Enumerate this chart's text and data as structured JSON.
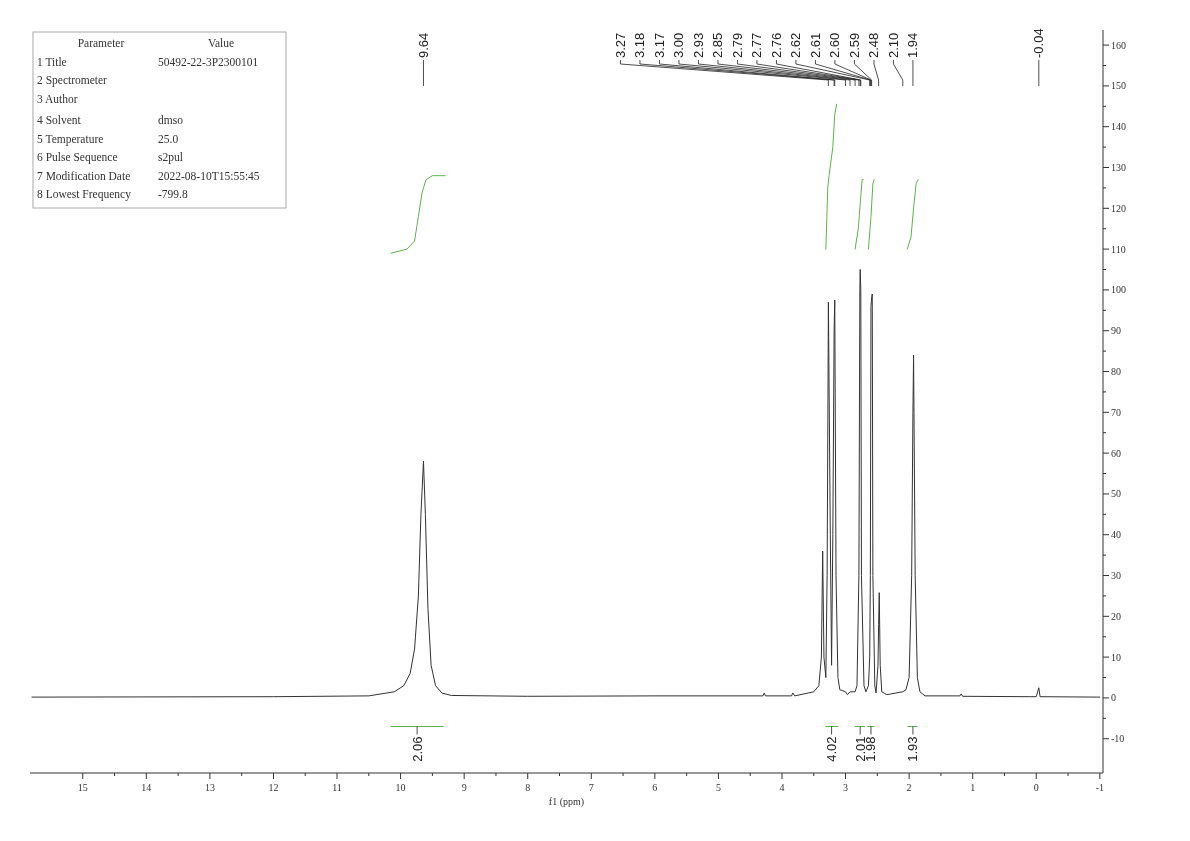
{
  "chart_data": {
    "type": "line",
    "xlabel": "f1 (ppm)",
    "xlim": [
      15.83,
      -1.05
    ],
    "ylim": [
      -18.4,
      163.7
    ],
    "xticks": [
      15,
      {
        "value": 14.5,
        "label": null
      },
      14,
      {
        "value": 13.5,
        "label": null
      },
      13,
      {
        "value": 12.5,
        "label": null
      },
      12,
      {
        "value": 11.5,
        "label": null
      },
      11,
      {
        "value": 10.5,
        "label": null
      },
      10,
      {
        "value": 9.5,
        "label": null
      },
      9,
      {
        "value": 8.5,
        "label": null
      },
      8,
      {
        "value": 7.5,
        "label": null
      },
      7,
      {
        "value": 6.5,
        "label": null
      },
      6,
      {
        "value": 5.5,
        "label": null
      },
      5,
      {
        "value": 4.5,
        "label": null
      },
      4,
      {
        "value": 3.5,
        "label": null
      },
      3,
      {
        "value": 2.5,
        "label": null
      },
      2,
      {
        "value": 1.5,
        "label": null
      },
      1,
      {
        "value": 0.5,
        "label": null
      },
      0,
      {
        "value": -0.5,
        "label": null
      },
      -1
    ],
    "yticks": [
      -10,
      {
        "value": -5,
        "label": null
      },
      0,
      {
        "value": 5,
        "label": null
      },
      10,
      {
        "value": 15,
        "label": null
      },
      20,
      {
        "value": 25,
        "label": null
      },
      30,
      {
        "value": 35,
        "label": null
      },
      40,
      {
        "value": 45,
        "label": null
      },
      50,
      {
        "value": 55,
        "label": null
      },
      60,
      {
        "value": 65,
        "label": null
      },
      70,
      {
        "value": 75,
        "label": null
      },
      80,
      {
        "value": 85,
        "label": null
      },
      90,
      {
        "value": 95,
        "label": null
      },
      100,
      {
        "value": 105,
        "label": null
      },
      110,
      {
        "value": 115,
        "label": null
      },
      120,
      {
        "value": 125,
        "label": null
      },
      130,
      {
        "value": 135,
        "label": null
      },
      140,
      {
        "value": 145,
        "label": null
      },
      150,
      {
        "value": 155,
        "label": null
      },
      160
    ],
    "grid": false,
    "line_style": "solid",
    "marker": "none",
    "series": [
      {
        "color": "#333333",
        "x": [
          15.8,
          12,
          10.5,
          10.1,
          9.95,
          9.85,
          9.78,
          9.72,
          9.68,
          9.64,
          9.61,
          9.57,
          9.52,
          9.45,
          9.35,
          9.2,
          8,
          6,
          4.3,
          4.28,
          4.26,
          3.85,
          3.83,
          3.8,
          3.5,
          3.42,
          3.38,
          3.36,
          3.34,
          3.31,
          3.29,
          3.27,
          3.24,
          3.22,
          3.2,
          3.18,
          3.17,
          3.15,
          3.12,
          3.09,
          3.0,
          2.97,
          2.93,
          2.85,
          2.82,
          2.79,
          2.775,
          2.77,
          2.76,
          2.75,
          2.71,
          2.68,
          2.64,
          2.62,
          2.61,
          2.6,
          2.59,
          2.58,
          2.57,
          2.54,
          2.52,
          2.49,
          2.48,
          2.47,
          2.455,
          2.43,
          2.35,
          2.1,
          2.05,
          2.0,
          1.96,
          1.94,
          1.93,
          1.905,
          1.87,
          1.83,
          1.75,
          1.2,
          1.18,
          1.16,
          0.1,
          0.0,
          -0.04,
          -0.06,
          -1
        ],
        "values": [
          0.2,
          0.3,
          0.5,
          1.5,
          3,
          6,
          12,
          25,
          45,
          58,
          45,
          22,
          8,
          3,
          1.2,
          0.6,
          0.4,
          0.5,
          0.5,
          1.2,
          0.5,
          0.5,
          1.2,
          0.5,
          1.5,
          3,
          10,
          36,
          10,
          5,
          30,
          97,
          40,
          8,
          40,
          90,
          97.5,
          30,
          5,
          2,
          1.5,
          0.8,
          1.5,
          1.5,
          3,
          30,
          100,
          105,
          100,
          30,
          3,
          1.5,
          3,
          10,
          30,
          96,
          98,
          99,
          30,
          3,
          1.2,
          8,
          18,
          25.8,
          8,
          1.5,
          0.8,
          1.5,
          2,
          5,
          30,
          70,
          84,
          30,
          5,
          1.5,
          0.5,
          0.5,
          1,
          0.4,
          0.3,
          0.3,
          2.5,
          0.3,
          0.2
        ]
      },
      {
        "color": "#5fb14f",
        "x": [
          10.15,
          9.9,
          9.78,
          9.72,
          9.66,
          9.6,
          9.5,
          9.3
        ],
        "values": [
          109,
          110,
          112,
          118,
          124,
          127,
          128,
          128
        ]
      },
      {
        "color": "#5fb14f",
        "x": [
          3.31,
          3.28,
          3.26,
          3.2,
          3.17,
          3.14
        ],
        "values": [
          110,
          125,
          128,
          135,
          143,
          145.5
        ]
      },
      {
        "color": "#5fb14f",
        "x": [
          2.85,
          2.8,
          2.77,
          2.74,
          2.72
        ],
        "values": [
          110,
          115,
          121,
          127,
          127
        ]
      },
      {
        "color": "#5fb14f",
        "x": [
          2.64,
          2.6,
          2.57,
          2.55
        ],
        "values": [
          110,
          118,
          126,
          127
        ]
      },
      {
        "color": "#5fb14f",
        "x": [
          2.03,
          1.97,
          1.93,
          1.89,
          1.86
        ],
        "values": [
          110,
          113,
          120,
          126,
          127
        ]
      },
      {
        "color": "#5fb14f",
        "x": [
          10.15,
          9.33
        ],
        "values": [
          -7,
          -7
        ]
      },
      {
        "color": "#5fb14f",
        "x": [
          3.31,
          3.12
        ],
        "values": [
          -7,
          -7
        ]
      },
      {
        "color": "#5fb14f",
        "x": [
          2.85,
          2.7
        ],
        "values": [
          -7,
          -7
        ]
      },
      {
        "color": "#5fb14f",
        "x": [
          2.65,
          2.55
        ],
        "values": [
          -7,
          -7
        ]
      },
      {
        "color": "#5fb14f",
        "x": [
          2.02,
          1.87
        ],
        "values": [
          -7,
          -7
        ]
      }
    ],
    "annotations": [
      "Parameter\tValue",
      "1 Title\t50492-22-3P2300101",
      "2 Spectrometer",
      "3 Author",
      "4 Solvent\tdmso",
      "5 Temperature\t25.0",
      "6 Pulse Sequence\ts2pul",
      "7 Modification Date\t2022-08-10T15:55:45",
      "8 Lowest Frequency\t-799.8",
      "9.64",
      "3.27",
      "3.18",
      "3.17",
      "3.00",
      "2.93",
      "2.85",
      "2.79",
      "2.77",
      "2.76",
      "2.62",
      "2.61",
      "2.60",
      "2.59",
      "2.48",
      "2.10",
      "1.94",
      "-0.04",
      {
        "text": "2.06",
        "x": 9.74,
        "y": -7
      },
      {
        "text": "4.02",
        "x": 3.22,
        "y": -7
      },
      {
        "text": "2.01",
        "x": 2.77,
        "y": -7
      },
      {
        "text": "1.98",
        "x": 2.6,
        "y": -7
      },
      {
        "text": "1.93",
        "x": 1.94,
        "y": -7
      }
    ]
  }
}
